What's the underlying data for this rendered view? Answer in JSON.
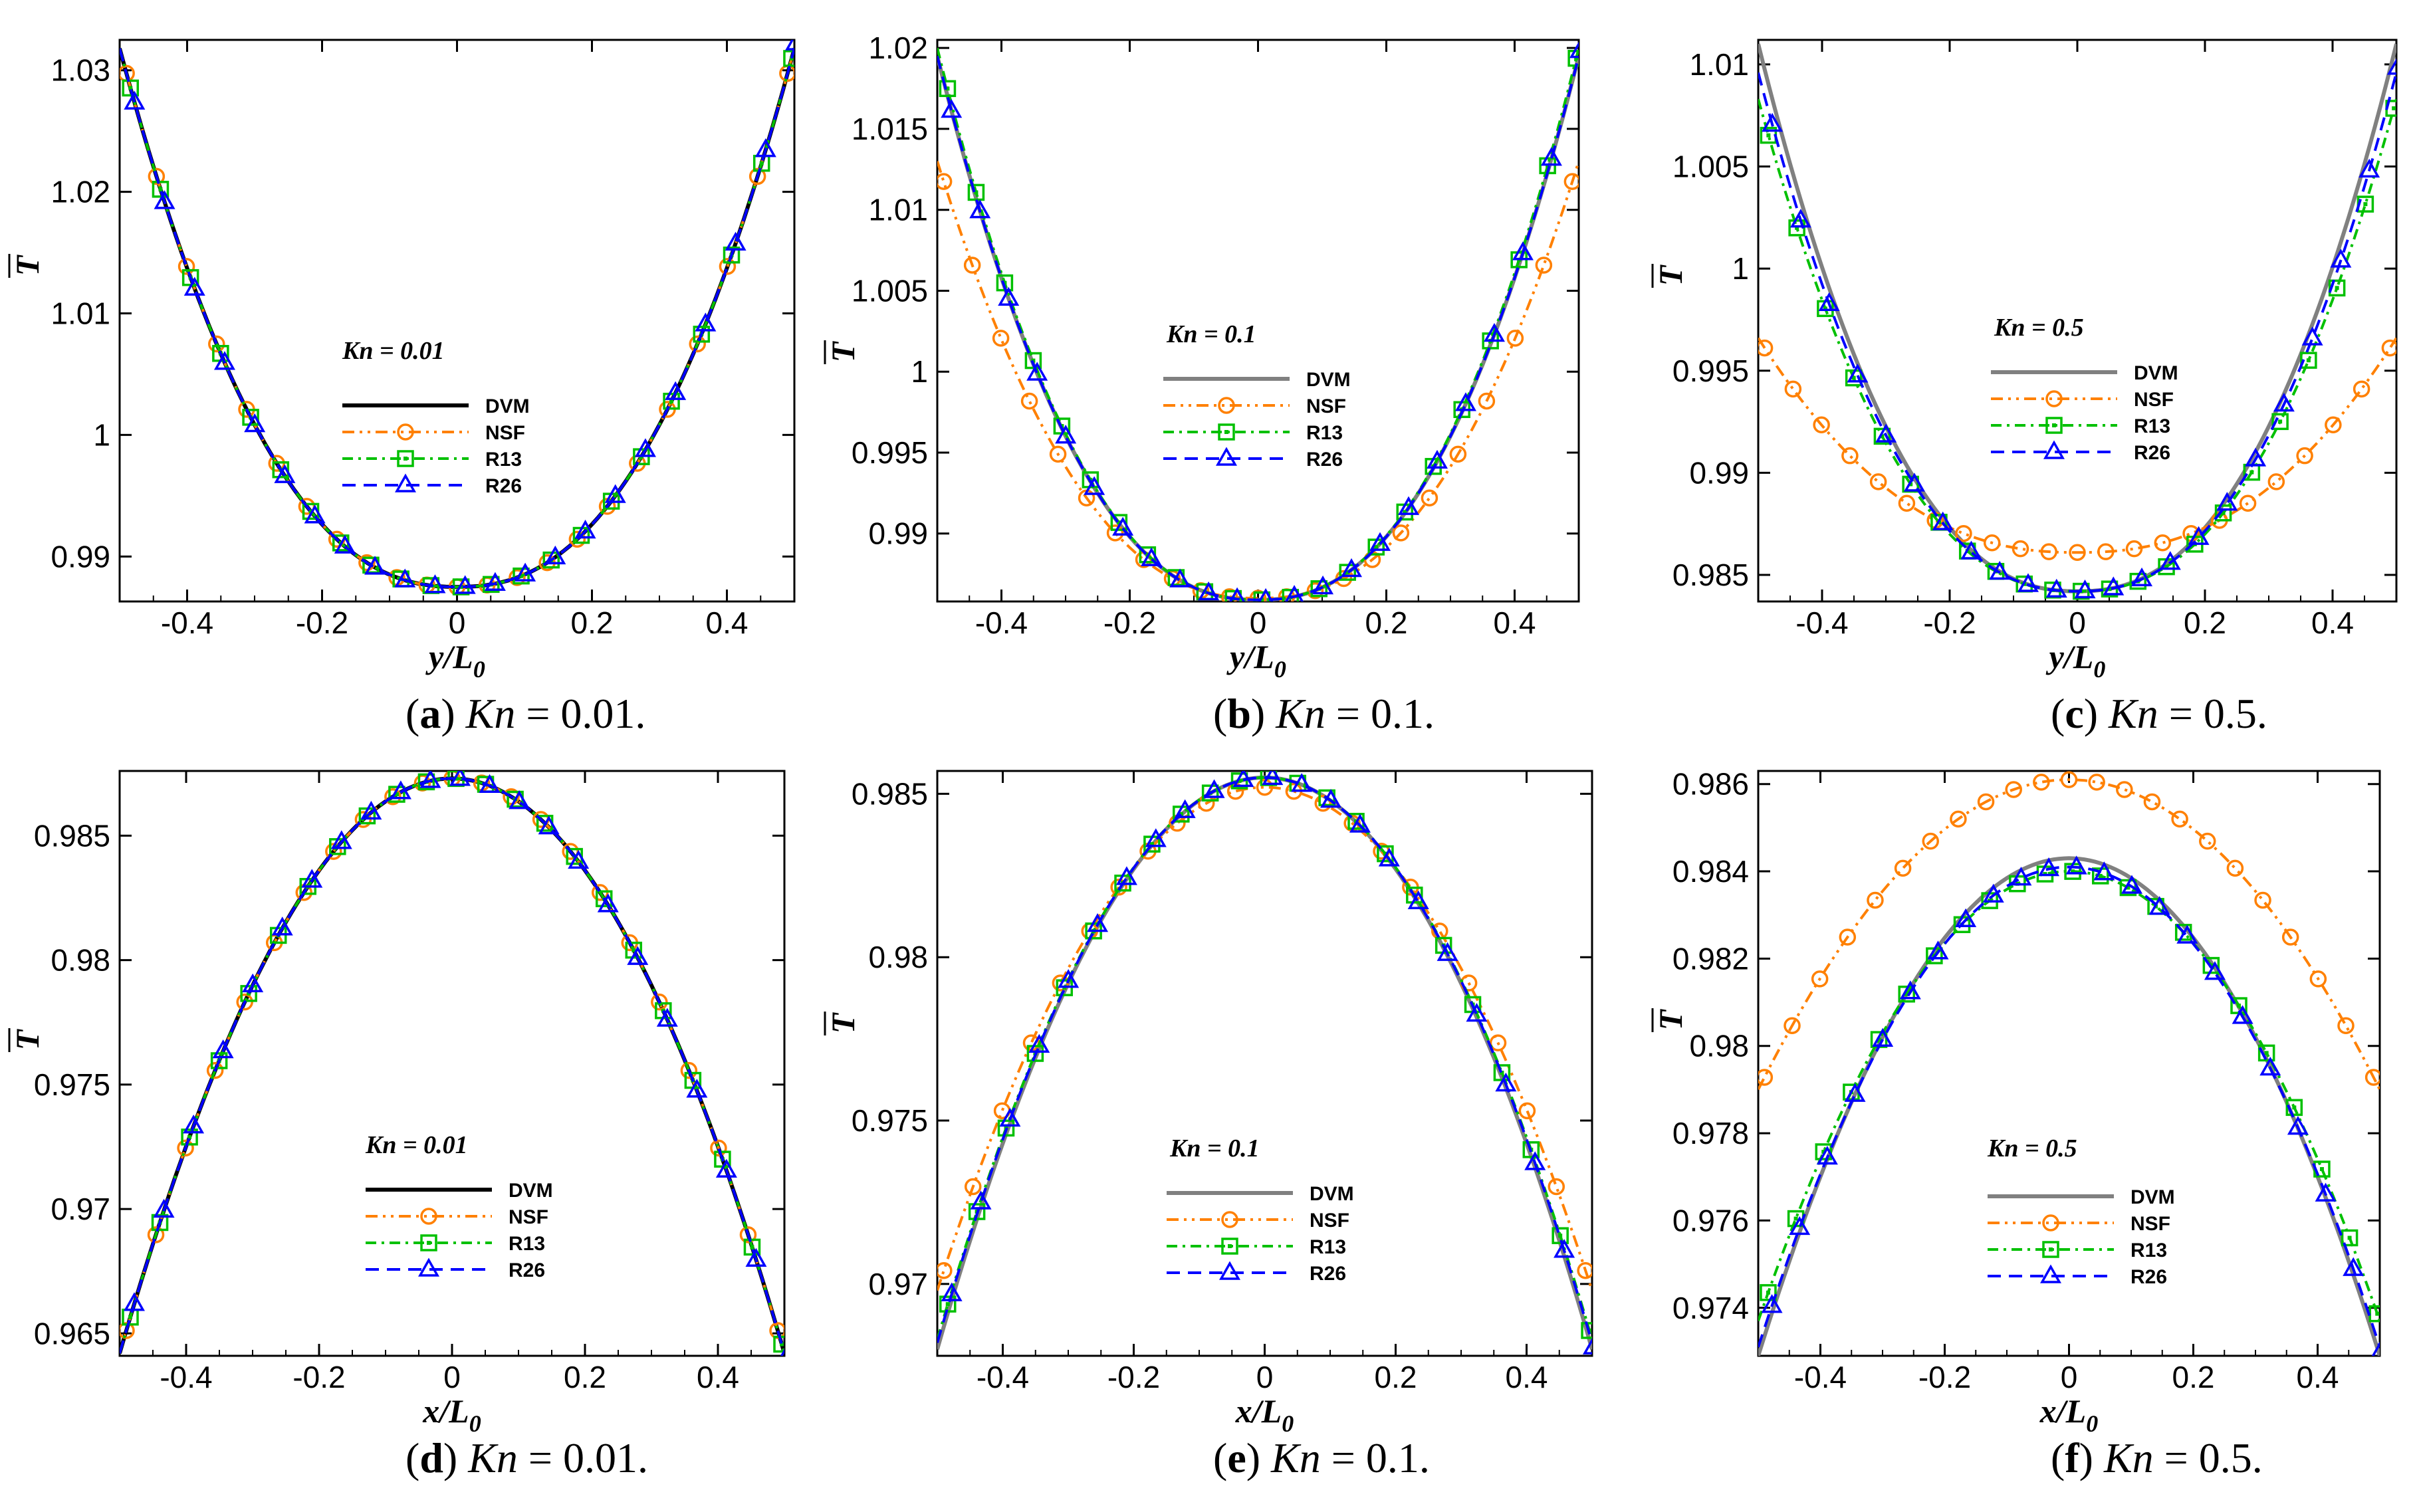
{
  "chart_data": [
    {
      "id": "a",
      "type": "line",
      "orientation": "y",
      "xlabel": "y/L",
      "xlabel_sub": "0",
      "ylabel": "T",
      "xlim": [
        -0.5,
        0.5
      ],
      "ylim": [
        0.9863,
        1.0325
      ],
      "xticks": [
        -0.4,
        -0.2,
        0,
        0.2,
        0.4
      ],
      "xtick_labels": [
        "-0.4",
        "-0.2",
        "0",
        "0.2",
        "0.4"
      ],
      "yticks": [
        0.99,
        1.0,
        1.01,
        1.02,
        1.03
      ],
      "ytick_labels": [
        "0.99",
        "1",
        "1.01",
        "1.02",
        "1.03"
      ],
      "kn_label": "Kn = 0.01",
      "caption": {
        "tag": "(a)",
        "kn": "Kn",
        "rest": " = 0.01."
      },
      "legend": [
        "DVM",
        "NSF",
        "R13",
        "R26"
      ],
      "series": [
        {
          "name": "DVM",
          "min": 0.9875,
          "max": 1.0318
        },
        {
          "name": "NSF",
          "min": 0.9875,
          "max": 1.0318
        },
        {
          "name": "R13",
          "min": 0.9875,
          "max": 1.0318
        },
        {
          "name": "R26",
          "min": 0.9875,
          "max": 1.0318
        }
      ]
    },
    {
      "id": "b",
      "type": "line",
      "orientation": "y",
      "xlabel": "y/L",
      "xlabel_sub": "0",
      "ylabel": "T",
      "xlim": [
        -0.5,
        0.5
      ],
      "ylim": [
        0.9858,
        1.0205
      ],
      "xticks": [
        -0.4,
        -0.2,
        0,
        0.2,
        0.4
      ],
      "xtick_labels": [
        "-0.4",
        "-0.2",
        "0",
        "0.2",
        "0.4"
      ],
      "yticks": [
        0.99,
        0.995,
        1.0,
        1.005,
        1.01,
        1.015,
        1.02
      ],
      "ytick_labels": [
        "0.99",
        "0.995",
        "1",
        "1.005",
        "1.01",
        "1.015",
        "1.02"
      ],
      "kn_label": "Kn = 0.1",
      "caption": {
        "tag": "(b)",
        "kn": "Kn",
        "rest": " = 0.1."
      },
      "legend": [
        "DVM",
        "NSF",
        "R13",
        "R26"
      ],
      "series": [
        {
          "name": "DVM",
          "min": 0.9859,
          "max": 1.0195
        },
        {
          "name": "NSF",
          "min": 0.986,
          "max": 1.013
        },
        {
          "name": "R13",
          "min": 0.9859,
          "max": 1.02
        },
        {
          "name": "R26",
          "min": 0.9859,
          "max": 1.0195
        }
      ]
    },
    {
      "id": "c",
      "type": "line",
      "orientation": "y",
      "xlabel": "y/L",
      "xlabel_sub": "0",
      "ylabel": "T",
      "xlim": [
        -0.5,
        0.5
      ],
      "ylim": [
        0.9837,
        1.0112
      ],
      "xticks": [
        -0.4,
        -0.2,
        0,
        0.2,
        0.4
      ],
      "xtick_labels": [
        "-0.4",
        "-0.2",
        "0",
        "0.2",
        "0.4"
      ],
      "yticks": [
        0.985,
        0.99,
        0.995,
        1.0,
        1.005,
        1.01
      ],
      "ytick_labels": [
        "0.985",
        "0.99",
        "0.995",
        "1",
        "1.005",
        "1.01"
      ],
      "kn_label": "Kn = 0.5",
      "caption": {
        "tag": "(c)",
        "kn": "Kn",
        "rest": " = 0.5."
      },
      "legend": [
        "DVM",
        "NSF",
        "R13",
        "R26"
      ],
      "series": [
        {
          "name": "DVM",
          "min": 0.9842,
          "max": 1.011
        },
        {
          "name": "NSF",
          "min": 0.9861,
          "max": 0.9966
        },
        {
          "name": "R13",
          "min": 0.9842,
          "max": 1.0083
        },
        {
          "name": "R26",
          "min": 0.9842,
          "max": 1.0096
        }
      ]
    },
    {
      "id": "d",
      "type": "line",
      "orientation": "x",
      "xlabel": "x/L",
      "xlabel_sub": "0",
      "ylabel": "T",
      "xlim": [
        -0.5,
        0.5
      ],
      "ylim": [
        0.9641,
        0.9876
      ],
      "xticks": [
        -0.4,
        -0.2,
        0,
        0.2,
        0.4
      ],
      "xtick_labels": [
        "-0.4",
        "-0.2",
        "0",
        "0.2",
        "0.4"
      ],
      "yticks": [
        0.965,
        0.97,
        0.975,
        0.98,
        0.985
      ],
      "ytick_labels": [
        "0.965",
        "0.97",
        "0.975",
        "0.98",
        "0.985"
      ],
      "kn_label": "Kn = 0.01",
      "caption": {
        "tag": "(d)",
        "kn": "Kn",
        "rest": " = 0.01."
      },
      "legend": [
        "DVM",
        "NSF",
        "R13",
        "R26"
      ],
      "series": [
        {
          "name": "DVM",
          "max": 0.9873,
          "min": 0.9642
        },
        {
          "name": "NSF",
          "max": 0.9873,
          "min": 0.9642
        },
        {
          "name": "R13",
          "max": 0.9873,
          "min": 0.9642
        },
        {
          "name": "R26",
          "max": 0.9873,
          "min": 0.9642
        }
      ]
    },
    {
      "id": "e",
      "type": "line",
      "orientation": "x",
      "xlabel": "x/L",
      "xlabel_sub": "0",
      "ylabel": "T",
      "xlim": [
        -0.5,
        0.5
      ],
      "ylim": [
        0.9678,
        0.9857
      ],
      "xticks": [
        -0.4,
        -0.2,
        0,
        0.2,
        0.4
      ],
      "xtick_labels": [
        "-0.4",
        "-0.2",
        "0",
        "0.2",
        "0.4"
      ],
      "yticks": [
        0.97,
        0.975,
        0.98,
        0.985
      ],
      "ytick_labels": [
        "0.97",
        "0.975",
        "0.98",
        "0.985"
      ],
      "kn_label": "Kn = 0.1",
      "caption": {
        "tag": "(e)",
        "kn": "Kn",
        "rest": " = 0.1."
      },
      "legend": [
        "DVM",
        "NSF",
        "R13",
        "R26"
      ],
      "series": [
        {
          "name": "DVM",
          "max": 0.9855,
          "min": 0.968
        },
        {
          "name": "NSF",
          "max": 0.9852,
          "min": 0.9698
        },
        {
          "name": "R13",
          "max": 0.9855,
          "min": 0.9683
        },
        {
          "name": "R26",
          "max": 0.9855,
          "min": 0.9682
        }
      ]
    },
    {
      "id": "f",
      "type": "line",
      "orientation": "x",
      "xlabel": "x/L",
      "xlabel_sub": "0",
      "ylabel": "T",
      "xlim": [
        -0.5,
        0.5
      ],
      "ylim": [
        0.9729,
        0.9863
      ],
      "xticks": [
        -0.4,
        -0.2,
        0,
        0.2,
        0.4
      ],
      "xtick_labels": [
        "-0.4",
        "-0.2",
        "0",
        "0.2",
        "0.4"
      ],
      "yticks": [
        0.974,
        0.976,
        0.978,
        0.98,
        0.982,
        0.984,
        0.986
      ],
      "ytick_labels": [
        "0.974",
        "0.976",
        "0.978",
        "0.98",
        "0.982",
        "0.984",
        "0.986"
      ],
      "kn_label": "Kn = 0.5",
      "caption": {
        "tag": "(f)",
        "kn": "Kn",
        "rest": " = 0.5."
      },
      "legend": [
        "DVM",
        "NSF",
        "R13",
        "R26"
      ],
      "series": [
        {
          "name": "DVM",
          "max": 0.9843,
          "min": 0.9729
        },
        {
          "name": "NSF",
          "max": 0.9861,
          "min": 0.979
        },
        {
          "name": "R13",
          "max": 0.984,
          "min": 0.9737
        },
        {
          "name": "R26",
          "max": 0.9841,
          "min": 0.9731
        }
      ]
    }
  ],
  "series_colors": {
    "DVM": "#000000",
    "DVM_gray": "#808080",
    "NSF": "#ff8000",
    "R13": "#00c000",
    "R26": "#0000ff"
  }
}
